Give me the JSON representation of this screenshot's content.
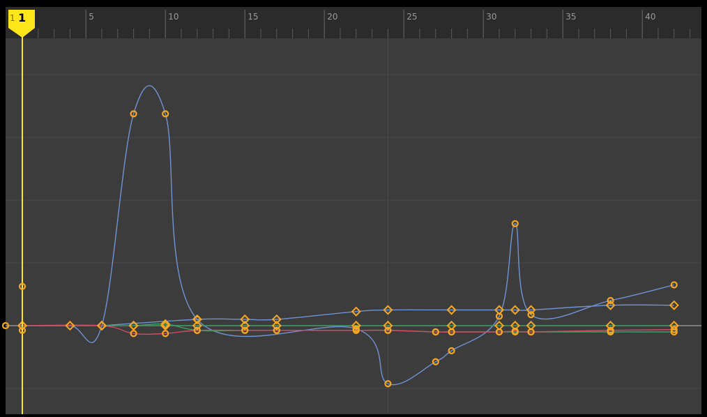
{
  "timeline": {
    "ruler_labels": [
      "5",
      "10",
      "15",
      "20",
      "25",
      "30",
      "35",
      "40"
    ],
    "playhead": {
      "frame": 1,
      "label": "1",
      "prefix": "1"
    }
  },
  "graph": {
    "colors": {
      "background": "#3c3c3c",
      "ruler_background": "#2b2b2b",
      "grid": "#4a4a4a",
      "zero_line": "#bdbdbd",
      "playhead": "#ffe61a",
      "keyframe": "#f5a623",
      "curve_blue": "#6f93d4",
      "curve_green": "#3fa064",
      "curve_red": "#d04c63"
    },
    "curves": [
      {
        "id": "blue-position-curve",
        "color": "curve_blue",
        "keys": [
          {
            "frame": 1,
            "value": 0,
            "shape": "diamond"
          },
          {
            "frame": 4,
            "value": 0,
            "shape": "diamond"
          },
          {
            "frame": 6,
            "value": 0,
            "shape": "diamond"
          },
          {
            "frame": 8,
            "value": 1.35,
            "shape": "circle"
          },
          {
            "frame": 10,
            "value": 1.35,
            "shape": "circle"
          },
          {
            "frame": 12,
            "value": 0.04,
            "shape": "circle"
          },
          {
            "frame": 22,
            "value": -0.02,
            "shape": "circle"
          },
          {
            "frame": 24,
            "value": -0.37,
            "shape": "circle"
          },
          {
            "frame": 27,
            "value": -0.23,
            "shape": "circle"
          },
          {
            "frame": 28,
            "value": -0.16,
            "shape": "circle"
          },
          {
            "frame": 31,
            "value": 0.06,
            "shape": "circle"
          },
          {
            "frame": 32,
            "value": 0.65,
            "shape": "circle"
          },
          {
            "frame": 33,
            "value": 0.07,
            "shape": "circle"
          },
          {
            "frame": 38,
            "value": 0.16,
            "shape": "circle"
          },
          {
            "frame": 42,
            "value": 0.26,
            "shape": "circle"
          }
        ]
      },
      {
        "id": "blue-rotation-curve",
        "color": "curve_blue",
        "keys": [
          {
            "frame": 6,
            "value": 0,
            "shape": "diamond"
          },
          {
            "frame": 12,
            "value": 0.04,
            "shape": "diamond"
          },
          {
            "frame": 15,
            "value": 0.04,
            "shape": "diamond"
          },
          {
            "frame": 17,
            "value": 0.04,
            "shape": "diamond"
          },
          {
            "frame": 22,
            "value": 0.09,
            "shape": "diamond"
          },
          {
            "frame": 24,
            "value": 0.1,
            "shape": "diamond"
          },
          {
            "frame": 28,
            "value": 0.1,
            "shape": "diamond"
          },
          {
            "frame": 31,
            "value": 0.1,
            "shape": "diamond"
          },
          {
            "frame": 32,
            "value": 0.1,
            "shape": "diamond"
          },
          {
            "frame": 33,
            "value": 0.1,
            "shape": "diamond"
          },
          {
            "frame": 38,
            "value": 0.13,
            "shape": "diamond"
          },
          {
            "frame": 42,
            "value": 0.13,
            "shape": "diamond"
          }
        ]
      },
      {
        "id": "green-curve",
        "color": "curve_green",
        "keys": [
          {
            "frame": 1,
            "value": 0,
            "shape": "diamond"
          },
          {
            "frame": 6,
            "value": 0,
            "shape": "diamond"
          },
          {
            "frame": 8,
            "value": 0,
            "shape": "diamond"
          },
          {
            "frame": 10,
            "value": 0.01,
            "shape": "diamond"
          },
          {
            "frame": 12,
            "value": -0.03,
            "shape": "circle"
          },
          {
            "frame": 15,
            "value": -0.03,
            "shape": "circle"
          },
          {
            "frame": 17,
            "value": -0.03,
            "shape": "circle"
          },
          {
            "frame": 22,
            "value": -0.03,
            "shape": "circle"
          },
          {
            "frame": 24,
            "value": -0.03,
            "shape": "circle"
          },
          {
            "frame": 27,
            "value": -0.04,
            "shape": "circle"
          },
          {
            "frame": 28,
            "value": -0.04,
            "shape": "circle"
          },
          {
            "frame": 31,
            "value": -0.04,
            "shape": "circle"
          },
          {
            "frame": 32,
            "value": -0.04,
            "shape": "circle"
          },
          {
            "frame": 33,
            "value": -0.04,
            "shape": "circle"
          },
          {
            "frame": 38,
            "value": -0.04,
            "shape": "circle"
          },
          {
            "frame": 42,
            "value": -0.04,
            "shape": "circle"
          }
        ]
      },
      {
        "id": "red-curve",
        "color": "curve_red",
        "keys": [
          {
            "frame": 1,
            "value": 0,
            "shape": "diamond"
          },
          {
            "frame": 6,
            "value": 0,
            "shape": "diamond"
          },
          {
            "frame": 8,
            "value": -0.05,
            "shape": "circle"
          },
          {
            "frame": 10,
            "value": -0.05,
            "shape": "circle"
          },
          {
            "frame": 12,
            "value": -0.03,
            "shape": "circle"
          },
          {
            "frame": 15,
            "value": -0.03,
            "shape": "circle"
          },
          {
            "frame": 17,
            "value": -0.03,
            "shape": "circle"
          },
          {
            "frame": 22,
            "value": -0.03,
            "shape": "circle"
          },
          {
            "frame": 24,
            "value": -0.03,
            "shape": "circle"
          },
          {
            "frame": 27,
            "value": -0.04,
            "shape": "circle"
          },
          {
            "frame": 28,
            "value": -0.04,
            "shape": "circle"
          },
          {
            "frame": 31,
            "value": -0.04,
            "shape": "circle"
          },
          {
            "frame": 32,
            "value": -0.035,
            "shape": "circle"
          },
          {
            "frame": 33,
            "value": -0.04,
            "shape": "circle"
          },
          {
            "frame": 38,
            "value": -0.03,
            "shape": "circle"
          },
          {
            "frame": 42,
            "value": -0.025,
            "shape": "circle"
          }
        ]
      },
      {
        "id": "flat-channel-curve",
        "color": "curve_green",
        "keys": [
          {
            "frame": 8,
            "value": 0,
            "shape": "diamond"
          },
          {
            "frame": 10,
            "value": 0,
            "shape": "diamond"
          },
          {
            "frame": 12,
            "value": 0,
            "shape": "diamond"
          },
          {
            "frame": 15,
            "value": 0,
            "shape": "diamond"
          },
          {
            "frame": 17,
            "value": 0,
            "shape": "diamond"
          },
          {
            "frame": 22,
            "value": 0,
            "shape": "diamond"
          },
          {
            "frame": 24,
            "value": 0,
            "shape": "diamond"
          },
          {
            "frame": 28,
            "value": 0,
            "shape": "diamond"
          },
          {
            "frame": 31,
            "value": 0,
            "shape": "diamond"
          },
          {
            "frame": 32,
            "value": 0,
            "shape": "diamond"
          },
          {
            "frame": 33,
            "value": 0,
            "shape": "diamond"
          },
          {
            "frame": 38,
            "value": 0,
            "shape": "diamond"
          },
          {
            "frame": 42,
            "value": 0,
            "shape": "diamond"
          }
        ]
      }
    ],
    "playhead_keys": [
      {
        "frame": 1,
        "value": 0.25,
        "shape": "circle"
      },
      {
        "frame": 1,
        "value": -0.03,
        "shape": "circle"
      },
      {
        "frame": 0,
        "value": 0,
        "shape": "circle"
      }
    ]
  }
}
